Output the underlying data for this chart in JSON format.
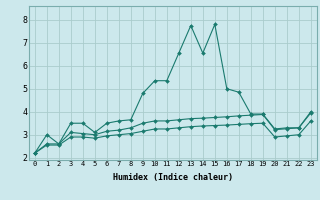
{
  "xlabel": "Humidex (Indice chaleur)",
  "xlim": [
    -0.5,
    23.5
  ],
  "ylim": [
    1.9,
    8.6
  ],
  "yticks": [
    2,
    3,
    4,
    5,
    6,
    7,
    8
  ],
  "xticks": [
    0,
    1,
    2,
    3,
    4,
    5,
    6,
    7,
    8,
    9,
    10,
    11,
    12,
    13,
    14,
    15,
    16,
    17,
    18,
    19,
    20,
    21,
    22,
    23
  ],
  "background_color": "#cce8ec",
  "grid_color": "#aacccc",
  "line_color": "#1a7a6e",
  "series": [
    [
      2.2,
      3.0,
      2.6,
      3.5,
      3.5,
      3.1,
      3.5,
      3.6,
      3.65,
      4.8,
      5.35,
      5.35,
      6.55,
      7.75,
      6.55,
      7.8,
      5.0,
      4.85,
      3.9,
      3.9,
      3.25,
      3.3,
      3.3,
      4.0
    ],
    [
      2.2,
      2.6,
      2.6,
      3.1,
      3.05,
      3.0,
      3.15,
      3.2,
      3.3,
      3.5,
      3.6,
      3.6,
      3.65,
      3.7,
      3.72,
      3.75,
      3.78,
      3.82,
      3.85,
      3.88,
      3.22,
      3.26,
      3.3,
      3.95
    ],
    [
      2.2,
      2.55,
      2.55,
      2.9,
      2.9,
      2.85,
      2.95,
      3.0,
      3.05,
      3.15,
      3.25,
      3.25,
      3.3,
      3.35,
      3.38,
      3.4,
      3.42,
      3.45,
      3.48,
      3.5,
      2.9,
      2.95,
      3.0,
      3.6
    ]
  ]
}
